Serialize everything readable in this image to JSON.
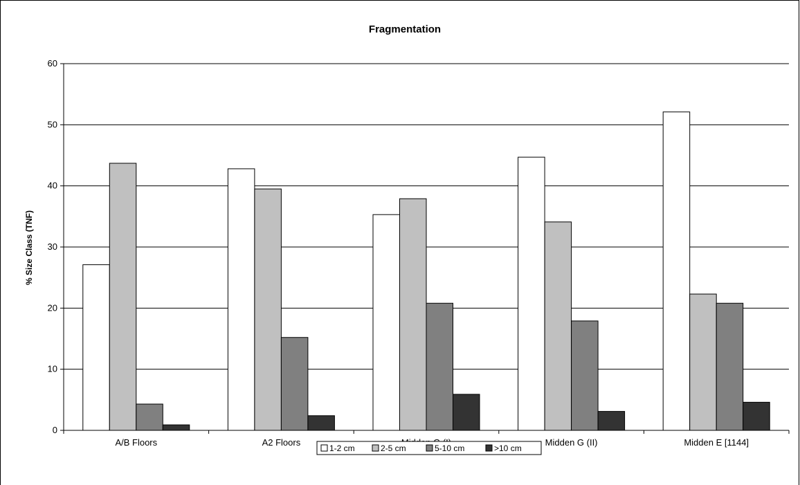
{
  "chart_data": {
    "type": "bar",
    "title": "Fragmentation",
    "xlabel": "",
    "ylabel": "% Size Class (TNF)",
    "ylim": [
      0,
      60
    ],
    "yticks": [
      0,
      10,
      20,
      30,
      40,
      50,
      60
    ],
    "grid": true,
    "legend_position": "bottom",
    "categories": [
      "A/B Floors",
      "A2 Floors",
      "Midden G (I)",
      "Midden G (II)",
      "Midden E [1144]"
    ],
    "series": [
      {
        "name": "1-2 cm",
        "color": "#ffffff",
        "values": [
          27.1,
          42.8,
          35.3,
          44.7,
          52.1
        ]
      },
      {
        "name": "2-5 cm",
        "color": "#c0c0c0",
        "values": [
          43.7,
          39.5,
          37.9,
          34.1,
          22.3
        ]
      },
      {
        "name": "5-10 cm",
        "color": "#808080",
        "values": [
          4.3,
          15.2,
          20.8,
          17.9,
          20.8
        ]
      },
      {
        "name": ">10 cm",
        "color": "#333333",
        "values": [
          0.9,
          2.4,
          5.9,
          3.1,
          4.6
        ]
      }
    ]
  }
}
